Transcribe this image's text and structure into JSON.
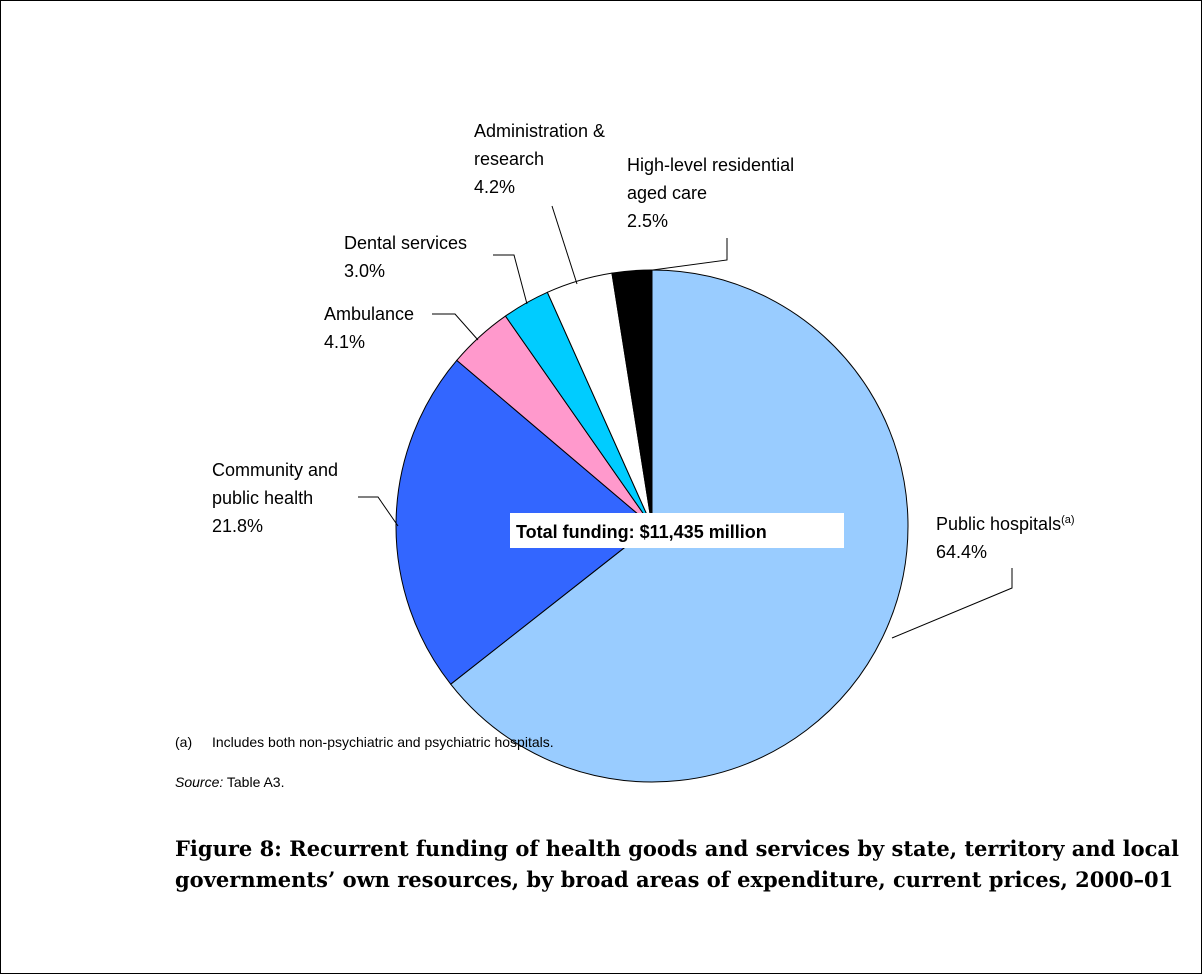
{
  "chart_data": {
    "type": "pie",
    "center_label": "Total funding: $11,435 million",
    "slices": [
      {
        "key": "public-hospitals",
        "label_lines": [
          "Public hospitals"
        ],
        "superscript": "(a)",
        "value": 64.4,
        "value_text": "64.4%",
        "color": "#99CCFF"
      },
      {
        "key": "community",
        "label_lines": [
          "Community and",
          "public health"
        ],
        "superscript": "",
        "value": 21.8,
        "value_text": "21.8%",
        "color": "#3366FF"
      },
      {
        "key": "ambulance",
        "label_lines": [
          "Ambulance"
        ],
        "superscript": "",
        "value": 4.1,
        "value_text": "4.1%",
        "color": "#FF99CC"
      },
      {
        "key": "dental",
        "label_lines": [
          "Dental services"
        ],
        "superscript": "",
        "value": 3.0,
        "value_text": "3.0%",
        "color": "#00CCFF"
      },
      {
        "key": "admin",
        "label_lines": [
          "Administration &",
          "research"
        ],
        "superscript": "",
        "value": 4.2,
        "value_text": "4.2%",
        "color": "#FFFFFF"
      },
      {
        "key": "aged-care",
        "label_lines": [
          "High-level residential",
          "aged care"
        ],
        "superscript": "",
        "value": 2.5,
        "value_text": "2.5%",
        "color": "#000000"
      }
    ]
  },
  "notes": {
    "footnote_marker": "(a)",
    "footnote_text": "Includes both non-psychiatric and psychiatric hospitals.",
    "source_label": "Source:",
    "source_text": " Table A3."
  },
  "caption": "Figure 8: Recurrent funding of health goods and services by state, territory and local governments’ own resources, by broad areas of expenditure, current prices, 2000–01"
}
